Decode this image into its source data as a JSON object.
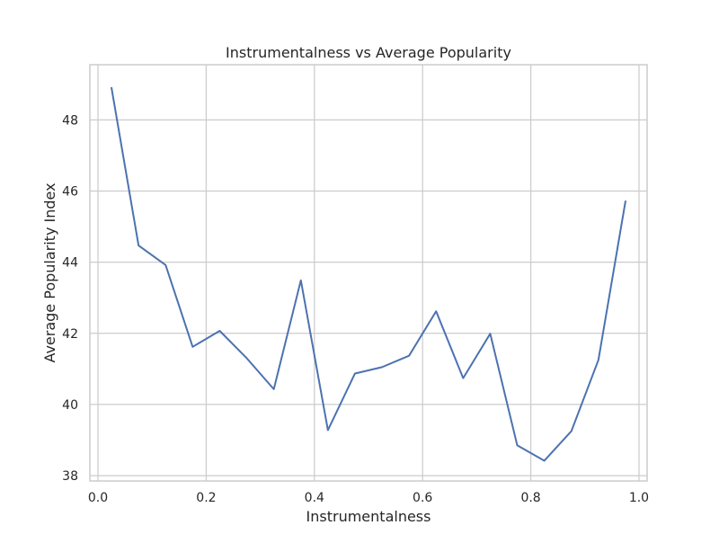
{
  "chart_data": {
    "type": "line",
    "title": "Instrumentalness vs Average Popularity",
    "xlabel": "Instrumentalness",
    "ylabel": "Average Popularity Index",
    "xlim": [
      -0.015,
      1.015
    ],
    "ylim": [
      37.85,
      49.55
    ],
    "xticks": [
      0.0,
      0.2,
      0.4,
      0.6,
      0.8,
      1.0
    ],
    "xtick_labels": [
      "0.0",
      "0.2",
      "0.4",
      "0.6",
      "0.8",
      "1.0"
    ],
    "yticks": [
      38,
      40,
      42,
      44,
      46,
      48
    ],
    "ytick_labels": [
      "38",
      "40",
      "42",
      "44",
      "46",
      "48"
    ],
    "grid": true,
    "series": [
      {
        "color": "#4c72b0",
        "x": [
          0.025,
          0.075,
          0.125,
          0.175,
          0.225,
          0.275,
          0.325,
          0.375,
          0.425,
          0.475,
          0.525,
          0.575,
          0.625,
          0.675,
          0.725,
          0.775,
          0.825,
          0.875,
          0.925,
          0.975
        ],
        "y": [
          48.9,
          44.47,
          43.92,
          41.62,
          42.07,
          41.3,
          40.43,
          43.49,
          39.28,
          40.87,
          41.05,
          41.37,
          42.62,
          40.74,
          41.99,
          38.85,
          38.42,
          39.25,
          41.25,
          45.71
        ]
      }
    ]
  }
}
